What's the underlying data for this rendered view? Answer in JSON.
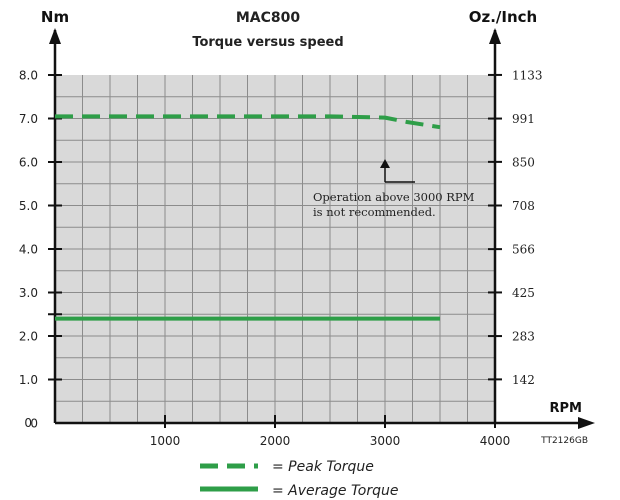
{
  "chart_data": {
    "type": "line",
    "title": "MAC800",
    "subtitle": "Torque versus speed",
    "ylabel_left": "Nm",
    "ylabel_right": "Oz./Inch",
    "xlabel": "RPM",
    "xlim": [
      0,
      4000
    ],
    "ylim": [
      0,
      8.0
    ],
    "x_ticks": [
      "1000",
      "2000",
      "3000",
      "4000"
    ],
    "y_ticks_left": [
      "0",
      "1.0",
      "2.0",
      "3.0",
      "4.0",
      "5.0",
      "6.0",
      "7.0",
      "8.0"
    ],
    "y_ticks_right": [
      "142",
      "283",
      "425",
      "566",
      "708",
      "850",
      "991",
      "1133"
    ],
    "grid": true,
    "series": [
      {
        "name": "Peak Torque",
        "style": "dashed",
        "color": "#2e9e48",
        "x": [
          0,
          1000,
          2000,
          2500,
          3000,
          3200,
          3500
        ],
        "y": [
          7.05,
          7.05,
          7.05,
          7.05,
          7.02,
          6.92,
          6.8
        ]
      },
      {
        "name": "Average Torque",
        "style": "solid",
        "color": "#2e9e48",
        "x": [
          0,
          1000,
          2000,
          3000,
          3500
        ],
        "y": [
          2.4,
          2.4,
          2.4,
          2.4,
          2.4
        ]
      }
    ],
    "annotation": {
      "x": 3000,
      "y": 6.0,
      "lines": [
        "Operation above 3000 RPM",
        "is not recommended."
      ]
    },
    "figure_code": "TT2126GB",
    "legend": [
      "= Peak Torque",
      "= Average Torque"
    ],
    "colors": {
      "plot_background": "#d9d9d9",
      "grid": "#8c8c8c",
      "axis": "#111111"
    }
  }
}
